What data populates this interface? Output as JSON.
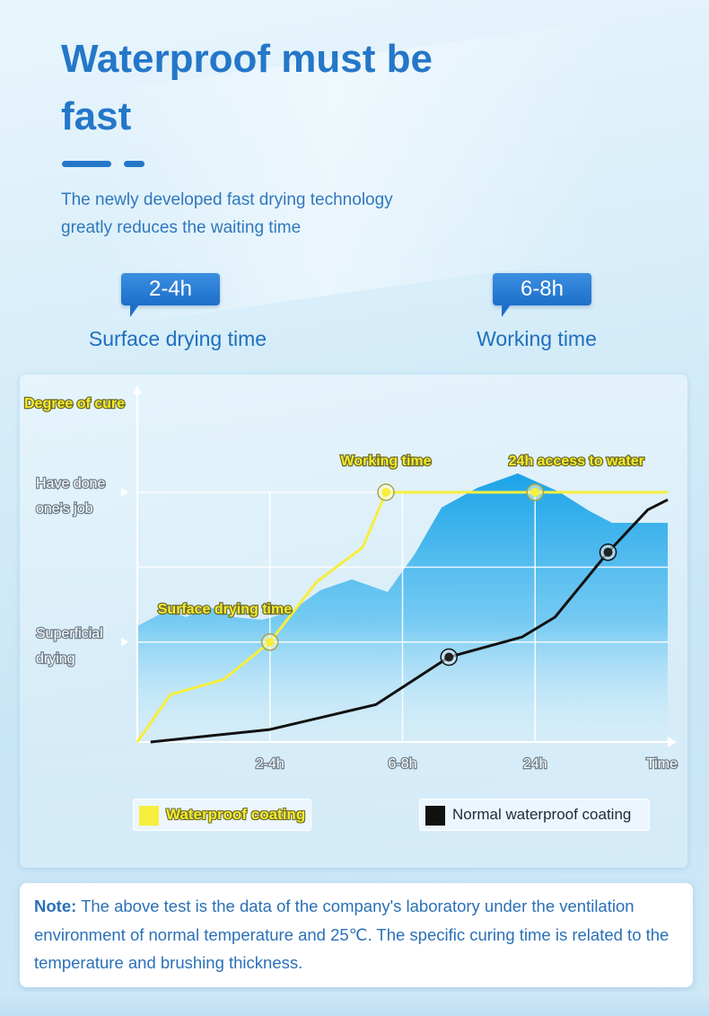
{
  "header": {
    "title": "Waterproof must be fast",
    "subtitle": "The newly developed fast drying technology greatly reduces the waiting time"
  },
  "badges": [
    {
      "value": "2-4h",
      "label": "Surface drying time"
    },
    {
      "value": "6-8h",
      "label": "Working time"
    }
  ],
  "chart_data": {
    "type": "line",
    "ylabel": "Degree of cure",
    "xlabel": "Time",
    "x_ticks": [
      "2-4h",
      "6-8h",
      "24h"
    ],
    "y_ticks": [
      "Superficial drying",
      "Have done one's job"
    ],
    "y_tick_values": [
      40,
      100
    ],
    "x_tick_values": [
      2,
      4,
      6
    ],
    "xlim": [
      0,
      8
    ],
    "ylim": [
      0,
      100
    ],
    "grid": true,
    "legend_position": "bottom",
    "series": [
      {
        "name": "Waterproof coating",
        "color": "#f7ee3d",
        "x": [
          0,
          0.5,
          1.3,
          2.0,
          2.7,
          3.4,
          3.75,
          8.0
        ],
        "y": [
          0,
          19,
          25,
          40,
          64,
          78,
          100,
          100
        ],
        "markers": [
          {
            "x": 2.0,
            "y": 40,
            "label": "Surface drying time"
          },
          {
            "x": 3.75,
            "y": 100,
            "label": "Working time"
          },
          {
            "x": 6.0,
            "y": 100,
            "label": "24h access to water"
          }
        ]
      },
      {
        "name": "Normal waterproof coating",
        "color": "#111111",
        "x": [
          0.2,
          2.0,
          3.6,
          4.7,
          5.8,
          6.3,
          7.1,
          7.7,
          8.0
        ],
        "y": [
          0,
          5,
          15,
          34,
          42,
          50,
          76,
          93,
          97
        ],
        "markers": [
          {
            "x": 4.7,
            "y": 34
          },
          {
            "x": 7.1,
            "y": 76
          }
        ]
      }
    ]
  },
  "note": {
    "label": "Note:",
    "text": " The above test is the data of the company's laboratory under the ventilation environment of normal temperature and 25℃. The specific curing time is related to the temperature and brushing thickness."
  },
  "colors": {
    "accent": "#2477c8",
    "waterproof_coating": "#f7ee3d",
    "normal_coating": "#111111",
    "water_fill": "#1aa3e8"
  }
}
